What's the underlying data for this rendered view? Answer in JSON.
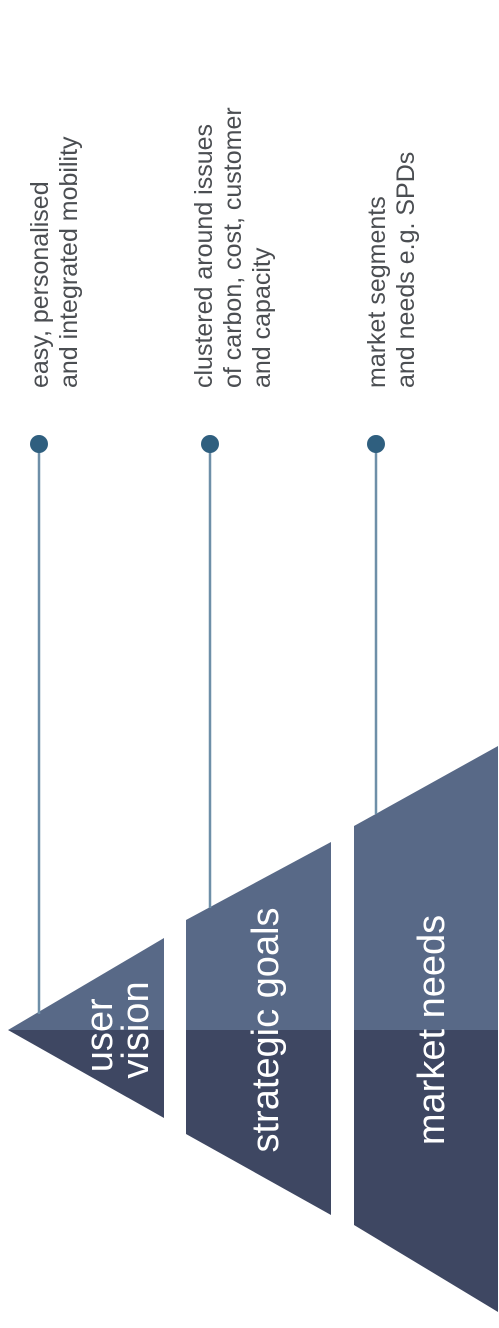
{
  "colors": {
    "tier_light": "#586987",
    "tier_dark": "#3e4762",
    "connector_line": "#6e8fa8",
    "dot": "#2f5f7f",
    "note_text": "#4b4e52",
    "label_text": "#ffffff"
  },
  "tiers": [
    {
      "label_lines": [
        "user",
        "vision"
      ],
      "note_lines": [
        "easy, personalised",
        "and integrated mobility"
      ]
    },
    {
      "label_lines": [
        "strategic goals"
      ],
      "note_lines": [
        "clustered around issues",
        "of carbon, cost, customer",
        "and capacity"
      ]
    },
    {
      "label_lines": [
        "market needs"
      ],
      "note_lines": [
        "market segments",
        "and needs e.g. SPDs"
      ]
    }
  ]
}
